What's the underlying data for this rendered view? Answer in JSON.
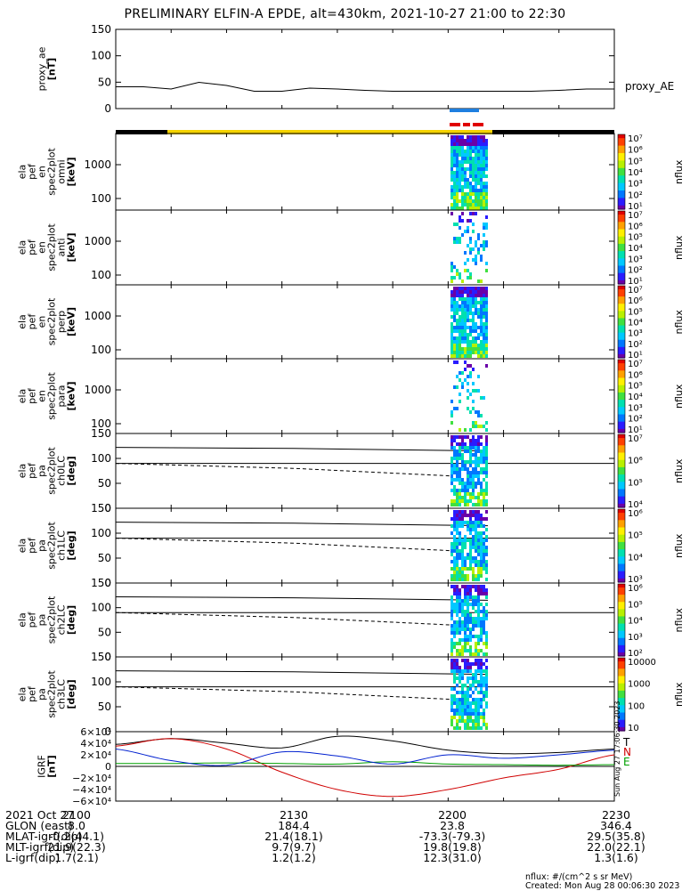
{
  "title": "PRELIMINARY ELFIN-A EPDE, alt=430km, 2021-10-27 21:00 to 22:30",
  "chart_data": [
    {
      "type": "line",
      "panel": "proxy_ae",
      "ylabel": "proxy_ae\n[nT]",
      "yticks": [
        "150",
        "100",
        "50",
        "0"
      ],
      "ylim": [
        0,
        150
      ],
      "series": [
        {
          "name": "proxy_AE",
          "x": [
            0,
            5,
            10,
            15,
            20,
            25,
            30,
            35,
            40,
            45,
            50,
            55,
            60,
            65,
            70,
            75,
            80,
            85,
            90
          ],
          "values": [
            35,
            35,
            30,
            45,
            38,
            25,
            25,
            32,
            30,
            27,
            25,
            25,
            25,
            25,
            25,
            25,
            27,
            30,
            30
          ]
        }
      ]
    },
    {
      "type": "heatmap",
      "panel": "omni",
      "ylabel": "ela\npef\nen\nspec2plot\nomni\n[keV]",
      "yticks": [
        "1000",
        "100"
      ],
      "colorbar": [
        "10⁷",
        "10⁶",
        "10⁵",
        "10⁴",
        "10³",
        "10²",
        "10¹"
      ],
      "zlabel": "nflux"
    },
    {
      "type": "heatmap",
      "panel": "anti",
      "ylabel": "ela\npef\nen\nspec2plot\nanti\n[keV]",
      "yticks": [
        "1000",
        "100"
      ],
      "colorbar": [
        "10⁷",
        "10⁶",
        "10⁵",
        "10⁴",
        "10³",
        "10²",
        "10¹"
      ],
      "zlabel": "nflux"
    },
    {
      "type": "heatmap",
      "panel": "perp",
      "ylabel": "ela\npef\nen\nspec2plot\nperp\n[keV]",
      "yticks": [
        "1000",
        "100"
      ],
      "colorbar": [
        "10⁷",
        "10⁶",
        "10⁵",
        "10⁴",
        "10³",
        "10²",
        "10¹"
      ],
      "zlabel": "nflux"
    },
    {
      "type": "heatmap",
      "panel": "para",
      "ylabel": "ela\npef\nen\nspec2plot\npara\n[keV]",
      "yticks": [
        "1000",
        "100"
      ],
      "colorbar": [
        "10⁷",
        "10⁶",
        "10⁵",
        "10⁴",
        "10³",
        "10²",
        "10¹"
      ],
      "zlabel": "nflux"
    },
    {
      "type": "heatmap",
      "panel": "ch0LC",
      "ylabel": "ela\npef\npa\nspec2plot\nch0LC\n[deg]",
      "yticks": [
        "150",
        "100",
        "50",
        "0"
      ],
      "colorbar": [
        "10⁷",
        "10⁶",
        "10⁵",
        "10⁴"
      ],
      "zlabel": "nflux"
    },
    {
      "type": "heatmap",
      "panel": "ch1LC",
      "ylabel": "ela\npef\npa\nspec2plot\nch1LC\n[deg]",
      "yticks": [
        "150",
        "100",
        "50",
        "0"
      ],
      "colorbar": [
        "10⁶",
        "10⁵",
        "10⁴",
        "10³"
      ],
      "zlabel": "nflux"
    },
    {
      "type": "heatmap",
      "panel": "ch2LC",
      "ylabel": "ela\npef\npa\nspec2plot\nch2LC\n[deg]",
      "yticks": [
        "150",
        "100",
        "50",
        "0"
      ],
      "colorbar": [
        "10⁶",
        "10⁵",
        "10⁴",
        "10³",
        "10²"
      ],
      "zlabel": "nflux"
    },
    {
      "type": "heatmap",
      "panel": "ch3LC",
      "ylabel": "ela\npef\npa\nspec2plot\nch3LC\n[deg]",
      "yticks": [
        "150",
        "100",
        "50",
        "0"
      ],
      "colorbar": [
        "10000",
        "1000",
        "100",
        "10"
      ],
      "zlabel": "nflux"
    },
    {
      "type": "line",
      "panel": "igrf",
      "ylabel": "IGRF\n[nT]",
      "yticks": [
        "6×10⁴",
        "4×10⁴",
        "2×10⁴",
        "0",
        "−2×10⁴",
        "−4×10⁴",
        "−6×10⁴"
      ],
      "ylim": [
        -60000,
        60000
      ],
      "series": [
        {
          "name": "T",
          "color": "#000000",
          "x": [
            0,
            10,
            20,
            30,
            40,
            50,
            60,
            70,
            80,
            90
          ],
          "values": [
            38000,
            48000,
            40000,
            32000,
            52000,
            44000,
            28000,
            22000,
            24000,
            30000
          ]
        },
        {
          "name": "N",
          "color": "#d00000",
          "x": [
            0,
            10,
            20,
            30,
            40,
            50,
            60,
            70,
            80,
            90
          ],
          "values": [
            35000,
            48000,
            30000,
            -10000,
            -40000,
            -52000,
            -40000,
            -20000,
            -5000,
            20000
          ]
        },
        {
          "name": "E",
          "color": "#00a000",
          "x": [
            0,
            10,
            20,
            30,
            40,
            50,
            60,
            70,
            80,
            90
          ],
          "values": [
            5000,
            5000,
            6000,
            5000,
            4000,
            8000,
            4000,
            3000,
            2000,
            3000
          ]
        },
        {
          "name": "",
          "color": "#0020d0",
          "x": [
            0,
            10,
            20,
            30,
            40,
            50,
            60,
            70,
            80,
            90
          ],
          "values": [
            30000,
            10000,
            2000,
            25000,
            18000,
            4000,
            20000,
            14000,
            20000,
            28000
          ]
        }
      ]
    }
  ],
  "footer": {
    "rows": [
      {
        "label": "2021 Oct 27",
        "values": [
          "2100",
          "2130",
          "2200",
          "2230"
        ]
      },
      {
        "label": "GLON (east)",
        "values": [
          "8.0",
          "184.4",
          "23.8",
          "346.4"
        ]
      },
      {
        "label": "MLAT-igrf(dip)",
        "values": [
          "-0.2(44.1)",
          "21.4(18.1)",
          "-73.3(-79.3)",
          "29.5(35.8)"
        ]
      },
      {
        "label": "MLT-igrf(dip)",
        "values": [
          "21.9(22.3)",
          "9.7(9.7)",
          "19.8(19.8)",
          "22.0(22.1)"
        ]
      },
      {
        "label": "L-igrf(dip)",
        "values": [
          "1.7(2.1)",
          "1.2(1.2)",
          "12.3(31.0)",
          "1.3(1.6)"
        ]
      }
    ],
    "units_note": "nflux: #/(cm^2 s sr MeV)",
    "created_note": "Created: Mon Aug 28 00:06:30 2023",
    "side_note": "Sun Aug 27 17:06:30 2023"
  }
}
